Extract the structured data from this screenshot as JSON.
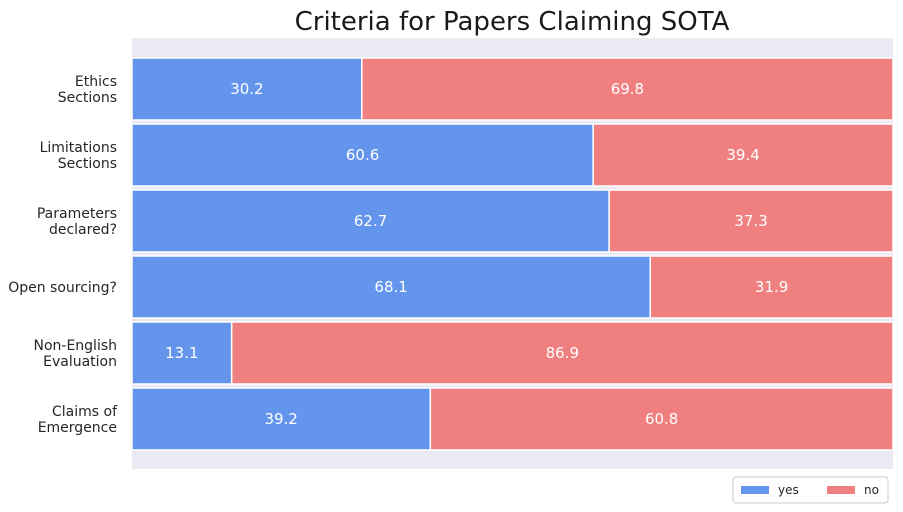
{
  "chart_data": {
    "type": "bar",
    "orientation": "horizontal",
    "stacked": true,
    "title": "Criteria for Papers Claiming SOTA",
    "categories": [
      [
        "Ethics",
        "Sections"
      ],
      [
        "Limitations",
        "Sections"
      ],
      [
        "Parameters",
        "declared?"
      ],
      [
        "Open sourcing?"
      ],
      [
        "Non-English",
        "Evaluation"
      ],
      [
        "Claims of",
        "Emergence"
      ]
    ],
    "series": [
      {
        "name": "yes",
        "color": "#6495ED",
        "values": [
          30.2,
          60.6,
          62.7,
          68.1,
          13.1,
          39.2
        ]
      },
      {
        "name": "no",
        "color": "#F08080",
        "values": [
          69.8,
          39.4,
          37.3,
          31.9,
          86.9,
          60.8
        ]
      }
    ],
    "xlim": [
      0,
      100
    ],
    "legend_position": "bottom-right",
    "background_color": "#EAEAF2",
    "grid": false,
    "xlabel": "",
    "ylabel": ""
  }
}
